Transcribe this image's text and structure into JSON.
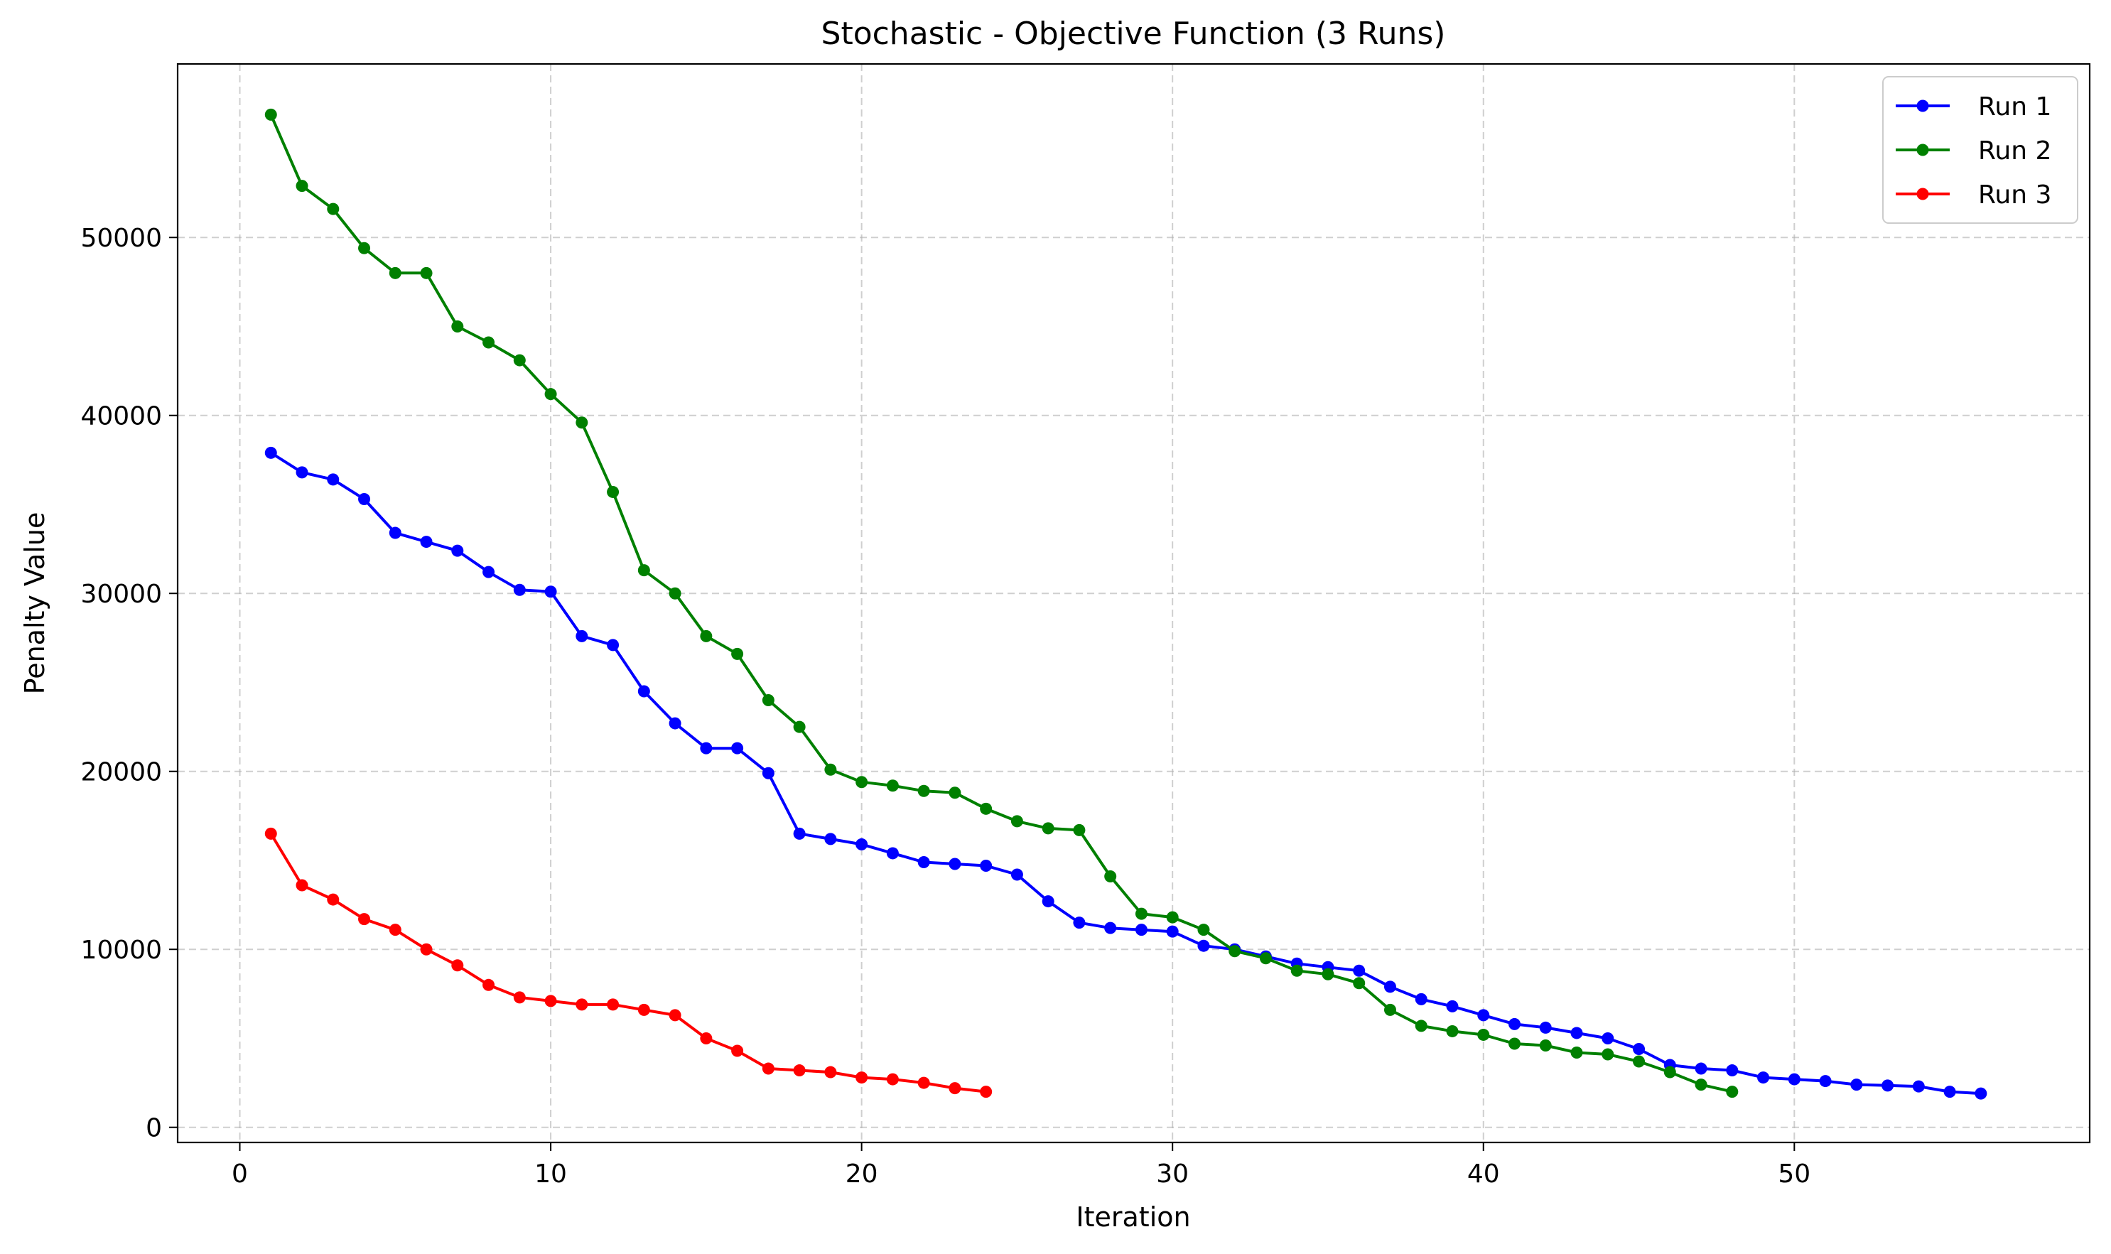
{
  "chart_data": {
    "type": "line",
    "title": "Stochastic - Objective Function (3 Runs)",
    "xlabel": "Iteration",
    "ylabel": "Penalty Value",
    "xlim": [
      -2,
      59.5
    ],
    "ylim": [
      -850,
      59750
    ],
    "xticks": [
      0,
      10,
      20,
      30,
      40,
      50
    ],
    "yticks": [
      0,
      10000,
      20000,
      30000,
      40000,
      50000
    ],
    "grid": true,
    "legend": "top-right",
    "series": [
      {
        "name": "Run 1",
        "color": "#0000ff",
        "x": [
          1,
          2,
          3,
          4,
          5,
          6,
          7,
          8,
          9,
          10,
          11,
          12,
          13,
          14,
          15,
          16,
          17,
          18,
          19,
          20,
          21,
          22,
          23,
          24,
          25,
          26,
          27,
          28,
          29,
          30,
          31,
          32,
          33,
          34,
          35,
          36,
          37,
          38,
          39,
          40,
          41,
          42,
          43,
          44,
          45,
          46,
          47,
          48,
          49,
          50,
          51,
          52,
          53,
          54,
          55,
          56
        ],
        "y": [
          37900,
          36800,
          36400,
          35300,
          33400,
          32900,
          32400,
          31200,
          30200,
          30100,
          27600,
          27100,
          24500,
          22700,
          21300,
          21300,
          19900,
          16500,
          16200,
          15900,
          15400,
          14900,
          14800,
          14700,
          14200,
          12700,
          11500,
          11200,
          11100,
          11000,
          10200,
          10000,
          9600,
          9200,
          9000,
          8800,
          7900,
          7200,
          6800,
          6300,
          5800,
          5600,
          5300,
          5000,
          4400,
          3500,
          3300,
          3200,
          2800,
          2700,
          2600,
          2400,
          2350,
          2300,
          2000,
          1900
        ]
      },
      {
        "name": "Run 2",
        "color": "#008000",
        "x": [
          1,
          2,
          3,
          4,
          5,
          6,
          7,
          8,
          9,
          10,
          11,
          12,
          13,
          14,
          15,
          16,
          17,
          18,
          19,
          20,
          21,
          22,
          23,
          24,
          25,
          26,
          27,
          28,
          29,
          30,
          31,
          32,
          33,
          34,
          35,
          36,
          37,
          38,
          39,
          40,
          41,
          42,
          43,
          44,
          45,
          46,
          47,
          48
        ],
        "y": [
          56900,
          52900,
          51600,
          49400,
          48000,
          48000,
          45000,
          44100,
          43100,
          41200,
          39600,
          35700,
          31300,
          30000,
          27600,
          26600,
          24000,
          22500,
          20100,
          19400,
          19200,
          18900,
          18800,
          17900,
          17200,
          16800,
          16700,
          14100,
          12000,
          11800,
          11100,
          9900,
          9500,
          8800,
          8600,
          8100,
          6600,
          5700,
          5400,
          5200,
          4700,
          4600,
          4200,
          4100,
          3700,
          3100,
          2400,
          2000
        ]
      },
      {
        "name": "Run 3",
        "color": "#ff0000",
        "x": [
          1,
          2,
          3,
          4,
          5,
          6,
          7,
          8,
          9,
          10,
          11,
          12,
          13,
          14,
          15,
          16,
          17,
          18,
          19,
          20,
          21,
          22,
          23,
          24
        ],
        "y": [
          16500,
          13600,
          12800,
          11700,
          11100,
          10000,
          9100,
          8000,
          7300,
          7100,
          6900,
          6900,
          6600,
          6300,
          5000,
          4300,
          3300,
          3200,
          3100,
          2800,
          2700,
          2500,
          2200,
          2000
        ]
      }
    ]
  }
}
